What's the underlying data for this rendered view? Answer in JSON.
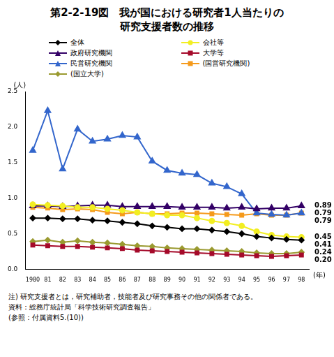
{
  "chart_data": {
    "type": "line",
    "title": [
      "第2-2-19図　我が国における研究者1人当たりの",
      "研究支援者数の推移"
    ],
    "y_label": "(人)",
    "x_label": "(年)",
    "categories": [
      "1980",
      "81",
      "82",
      "83",
      "84",
      "85",
      "86",
      "87",
      "88",
      "89",
      "90",
      "91",
      "92",
      "93",
      "94",
      "95",
      "96",
      "97",
      "98"
    ],
    "ylim": [
      0,
      2.5
    ],
    "yticks": [
      {
        "value": 0,
        "label": "0.0"
      },
      0.5,
      {
        "value": 1,
        "label": "1.0"
      },
      1.5,
      {
        "value": 2,
        "label": "2.0"
      },
      2.5
    ],
    "grid": false,
    "series": [
      {
        "name": "全体",
        "color": "#000000",
        "marker": "diamond",
        "end_label": "0.41",
        "values": [
          0.72,
          0.72,
          0.71,
          0.71,
          0.69,
          0.68,
          0.66,
          0.64,
          0.61,
          0.59,
          0.57,
          0.57,
          0.55,
          0.53,
          0.5,
          0.46,
          0.44,
          0.42,
          0.41
        ]
      },
      {
        "name": "会社等",
        "color": "#f2ee22",
        "marker": "circle",
        "end_label": "0.45",
        "values": [
          0.91,
          0.9,
          0.89,
          0.87,
          0.87,
          0.85,
          0.83,
          0.8,
          0.78,
          0.76,
          0.76,
          0.72,
          0.68,
          0.65,
          0.61,
          0.53,
          0.48,
          0.46,
          0.45
        ]
      },
      {
        "name": "政府研究機関",
        "color": "#330066",
        "marker": "triangle",
        "end_label": "0.89",
        "values": [
          0.89,
          0.89,
          0.88,
          0.89,
          0.9,
          0.9,
          0.88,
          0.88,
          0.88,
          0.88,
          0.87,
          0.87,
          0.87,
          0.86,
          0.87,
          0.85,
          0.86,
          0.86,
          0.89
        ]
      },
      {
        "name": "大学等",
        "color": "#a50a2a",
        "marker": "square",
        "end_label": "0.20",
        "values": [
          0.34,
          0.33,
          0.32,
          0.32,
          0.31,
          0.3,
          0.29,
          0.27,
          0.26,
          0.25,
          0.24,
          0.23,
          0.22,
          0.21,
          0.2,
          0.19,
          0.18,
          0.19,
          0.2
        ]
      },
      {
        "name": "民営研究機関",
        "color": "#3366cc",
        "marker": "triangle",
        "end_label": "0.79",
        "values": [
          1.67,
          2.23,
          1.41,
          1.97,
          1.8,
          1.83,
          1.88,
          1.86,
          1.52,
          1.39,
          1.35,
          1.33,
          1.21,
          1.16,
          1.06,
          0.79,
          0.77,
          0.76,
          0.79
        ]
      },
      {
        "name": "(国営研究機関)",
        "color": "#f59a1b",
        "marker": "square",
        "end_label": "0.79",
        "values": [
          0.87,
          0.86,
          0.84,
          0.85,
          0.84,
          0.8,
          0.78,
          0.8,
          0.78,
          0.78,
          0.79,
          0.79,
          0.78,
          0.77,
          0.76,
          0.78,
          0.76,
          0.76,
          0.79
        ]
      },
      {
        "name": "(国立大学)",
        "color": "#9a9a30",
        "marker": "diamond",
        "end_label": "0.24",
        "values": [
          0.39,
          0.41,
          0.38,
          0.4,
          0.38,
          0.37,
          0.35,
          0.33,
          0.32,
          0.3,
          0.29,
          0.28,
          0.27,
          0.26,
          0.25,
          0.23,
          0.22,
          0.22,
          0.24
        ]
      }
    ],
    "notes": [
      "注) 研究支援者とは，研究補助者，技能者及び研究事務その他の関係者である。",
      "資料：総務庁統計局「科学技術研究調査報告」",
      "(参照：付属資料5.(10))"
    ]
  }
}
